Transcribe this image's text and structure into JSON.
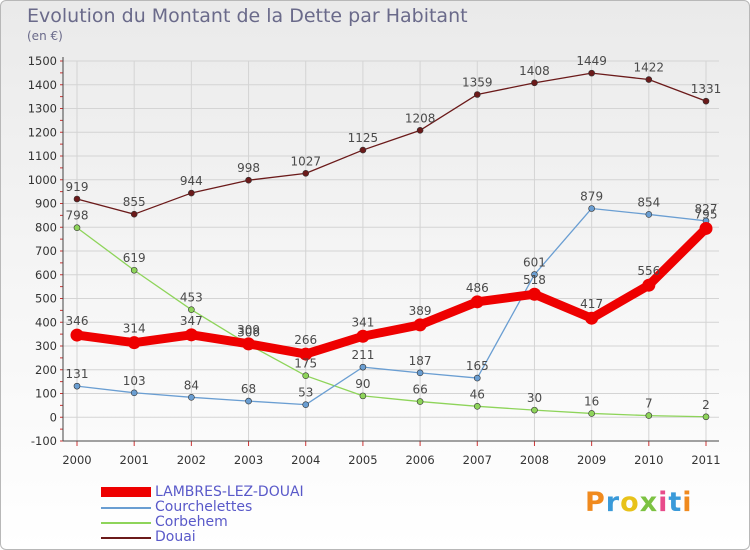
{
  "chart_data": {
    "type": "line",
    "title": "Evolution du Montant de la Dette par Habitant",
    "subtitle": "(en €)",
    "x": [
      "2000",
      "2001",
      "2002",
      "2003",
      "2004",
      "2005",
      "2006",
      "2007",
      "2008",
      "2009",
      "2010",
      "2011"
    ],
    "ylim": [
      -100,
      1500
    ],
    "yticks": [
      "-100",
      "0",
      "100",
      "200",
      "300",
      "400",
      "500",
      "600",
      "700",
      "800",
      "900",
      "1000",
      "1100",
      "1200",
      "1300",
      "1400",
      "1500"
    ],
    "series": [
      {
        "name": "Douai",
        "color": "#6b1a1a",
        "values": [
          919,
          855,
          944,
          998,
          1027,
          1125,
          1208,
          1359,
          1408,
          1449,
          1422,
          1331
        ],
        "labels": [
          "919",
          "855",
          "944",
          "998",
          "1027",
          "1125",
          "1208",
          "1359",
          "1408",
          "1449",
          "1422",
          "1331"
        ]
      },
      {
        "name": "Corbehem",
        "color": "#8ed45a",
        "values": [
          798,
          619,
          453,
          306,
          175,
          90,
          66,
          46,
          30,
          16,
          7,
          2
        ],
        "labels": [
          "798",
          "619",
          "453",
          "306",
          "175",
          "90",
          "66",
          "46",
          "30",
          "16",
          "7",
          "2"
        ]
      },
      {
        "name": "Courchelettes",
        "color": "#6a9ed2",
        "values": [
          131,
          103,
          84,
          68,
          53,
          211,
          187,
          165,
          601,
          879,
          854,
          827
        ],
        "labels": [
          "131",
          "103",
          "84",
          "68",
          "53",
          "211",
          "187",
          "165",
          "601",
          "879",
          "854",
          "827"
        ]
      },
      {
        "name": "LAMBRES-LEZ-DOUAI",
        "color": "#ee0000",
        "values": [
          346,
          314,
          347,
          309,
          266,
          341,
          389,
          486,
          518,
          417,
          556,
          795
        ],
        "labels": [
          "346",
          "314",
          "347",
          "309",
          "266",
          "341",
          "389",
          "486",
          "518",
          "417",
          "556",
          "795"
        ]
      }
    ],
    "legend": [
      "LAMBRES-LEZ-DOUAI",
      "Courchelettes",
      "Corbehem",
      "Douai"
    ]
  },
  "brand": {
    "letters": [
      "P",
      "r",
      "o",
      "x",
      "i",
      "t",
      "i"
    ],
    "colors": [
      "#f08a1e",
      "#3a9ad9",
      "#e8c21a",
      "#7cc242",
      "#e84b8a",
      "#3a9ad9",
      "#f08a1e"
    ]
  }
}
